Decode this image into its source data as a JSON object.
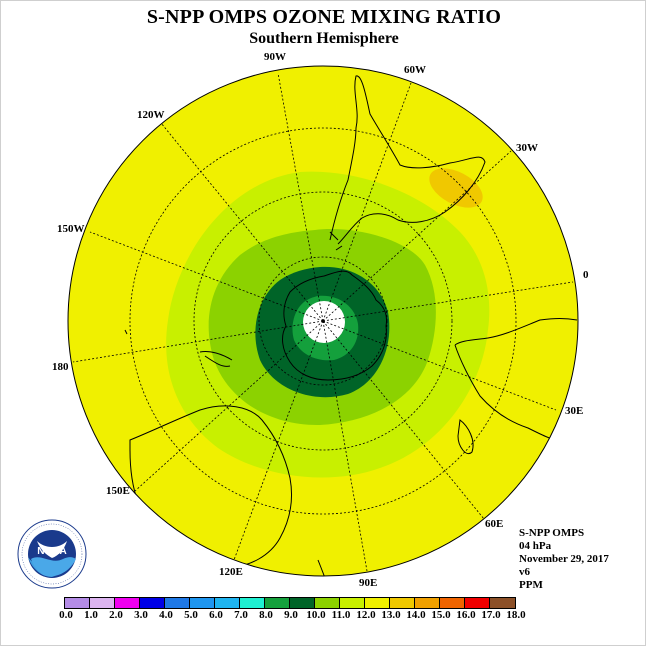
{
  "title": "S-NPP OMPS OZONE MIXING RATIO",
  "subtitle": "Southern Hemisphere",
  "longitude_labels": {
    "lon_90w": "90W",
    "lon_60w": "60W",
    "lon_30w": "30W",
    "lon_0": "0",
    "lon_30e": "30E",
    "lon_60e": "60E",
    "lon_90e": "90E",
    "lon_120e": "120E",
    "lon_150e": "150E",
    "lon_180": "180",
    "lon_150w": "150W",
    "lon_120w": "120W"
  },
  "info": {
    "instrument": "S-NPP OMPS",
    "pressure": "04 hPa",
    "date": "November 29, 2017",
    "version": "v6",
    "units": "PPM"
  },
  "colorbar": {
    "labels": [
      "0.0",
      "1.0",
      "2.0",
      "3.0",
      "4.0",
      "5.0",
      "6.0",
      "7.0",
      "8.0",
      "9.0",
      "10.0",
      "11.0",
      "12.0",
      "13.0",
      "14.0",
      "15.0",
      "16.0",
      "17.0",
      "18.0"
    ],
    "colors": [
      "#b48ce6",
      "#dcb4f0",
      "#f000f0",
      "#0000e6",
      "#1e78e6",
      "#1e96f0",
      "#1eb4f0",
      "#1ef0d2",
      "#14a03c",
      "#006428",
      "#8cd200",
      "#c8f000",
      "#f0f000",
      "#f0c800",
      "#f0a000",
      "#f06400",
      "#f00000",
      "#8c5028"
    ]
  },
  "ozone_field": {
    "levels_ppm": [
      8.0,
      9.0,
      10.0,
      11.0,
      12.0,
      13.0,
      14.0
    ],
    "hemisphere_background_ppm_range": [
      12.0,
      13.0
    ],
    "polar_core_ppm_range": [
      8.0,
      9.0
    ],
    "local_maximum_ppm_range": [
      13.0,
      14.0
    ]
  },
  "logo": {
    "name": "NOAA",
    "ring_text": "NATIONAL OCEANIC AND ATMOSPHERIC ADMINISTRATION · U.S. DEPARTMENT OF COMMERCE"
  }
}
